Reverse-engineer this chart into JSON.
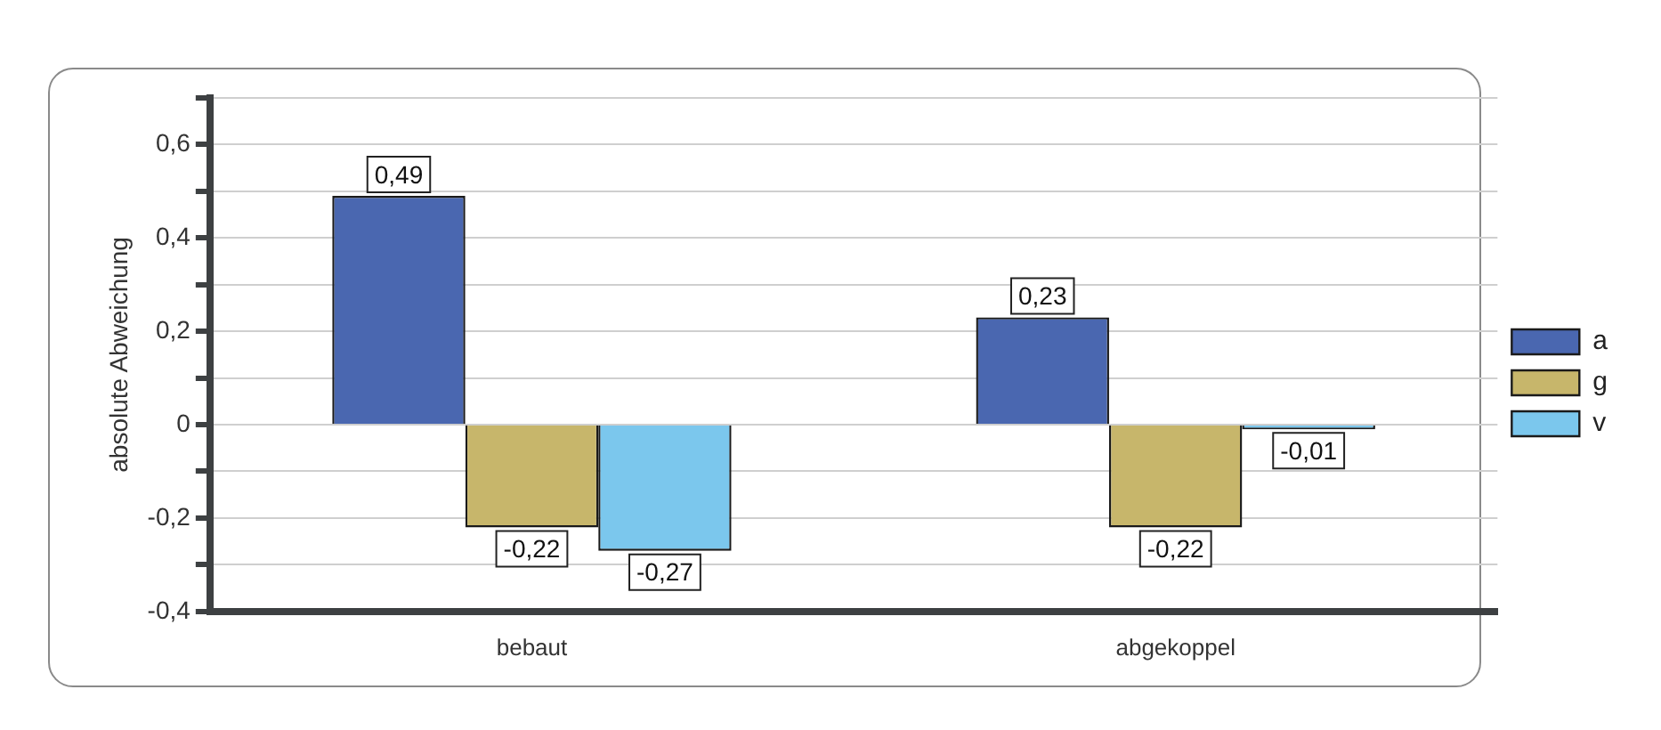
{
  "chart_data": {
    "type": "bar",
    "ylabel": "absolute Abweichung",
    "categories": [
      "bebaut",
      "abgekoppel"
    ],
    "series": [
      {
        "name": "a",
        "color": "#4a67b0",
        "values": [
          0.49,
          0.23
        ],
        "value_labels": [
          "0,49",
          "0,23"
        ]
      },
      {
        "name": "g",
        "color": "#c7b66b",
        "values": [
          -0.22,
          -0.22
        ],
        "value_labels": [
          "-0,22",
          "-0,22"
        ]
      },
      {
        "name": "v",
        "color": "#7bc7ed",
        "values": [
          -0.27,
          -0.01
        ],
        "value_labels": [
          "-0,27",
          "-0,01"
        ]
      }
    ],
    "ylim": [
      -0.4,
      0.7
    ],
    "yticks": [
      {
        "value": -0.4,
        "label": "-0,4"
      },
      {
        "value": -0.3,
        "label": null
      },
      {
        "value": -0.2,
        "label": "-0,2"
      },
      {
        "value": -0.1,
        "label": null
      },
      {
        "value": 0,
        "label": "0"
      },
      {
        "value": 0.1,
        "label": null
      },
      {
        "value": 0.2,
        "label": "0,2"
      },
      {
        "value": 0.3,
        "label": null
      },
      {
        "value": 0.4,
        "label": "0,4"
      },
      {
        "value": 0.5,
        "label": null
      },
      {
        "value": 0.6,
        "label": "0,6"
      },
      {
        "value": 0.7,
        "label": null
      }
    ],
    "grid": "y",
    "legend": "right"
  }
}
